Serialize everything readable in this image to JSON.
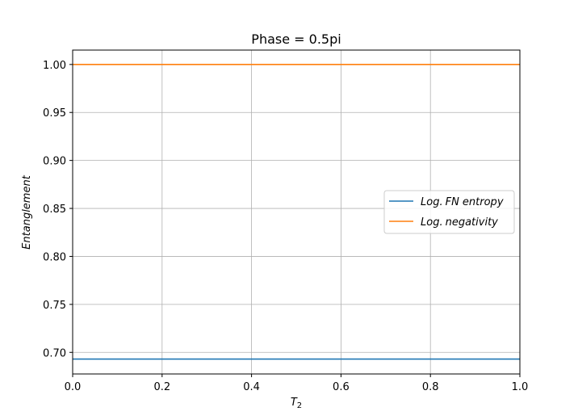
{
  "chart_data": {
    "type": "line",
    "title": "Phase = 0.5pi",
    "xlabel": "T",
    "xlabel_subscript": "2",
    "ylabel": "Entanglement",
    "xlim": [
      0.0,
      1.0
    ],
    "ylim": [
      0.6775,
      1.015
    ],
    "x_ticks": [
      0.0,
      0.2,
      0.4,
      0.6,
      0.8,
      1.0
    ],
    "x_tick_labels": [
      "0.0",
      "0.2",
      "0.4",
      "0.6",
      "0.8",
      "1.0"
    ],
    "y_ticks": [
      0.7,
      0.75,
      0.8,
      0.85,
      0.9,
      0.95,
      1.0
    ],
    "y_tick_labels": [
      "0.70",
      "0.75",
      "0.80",
      "0.85",
      "0.90",
      "0.95",
      "1.00"
    ],
    "grid": true,
    "legend_position": "center-right",
    "series": [
      {
        "name": "Log. FN entropy",
        "name_math": "Log.",
        "name_rest": "FN entropy",
        "color": "#1f77b4",
        "x": [
          0.0,
          1.0
        ],
        "y": [
          0.693,
          0.693
        ]
      },
      {
        "name": "Log. negativity",
        "name_math": "Log.",
        "name_rest": "negativity",
        "color": "#ff7f0e",
        "x": [
          0.0,
          1.0
        ],
        "y": [
          1.0,
          1.0
        ]
      }
    ]
  }
}
